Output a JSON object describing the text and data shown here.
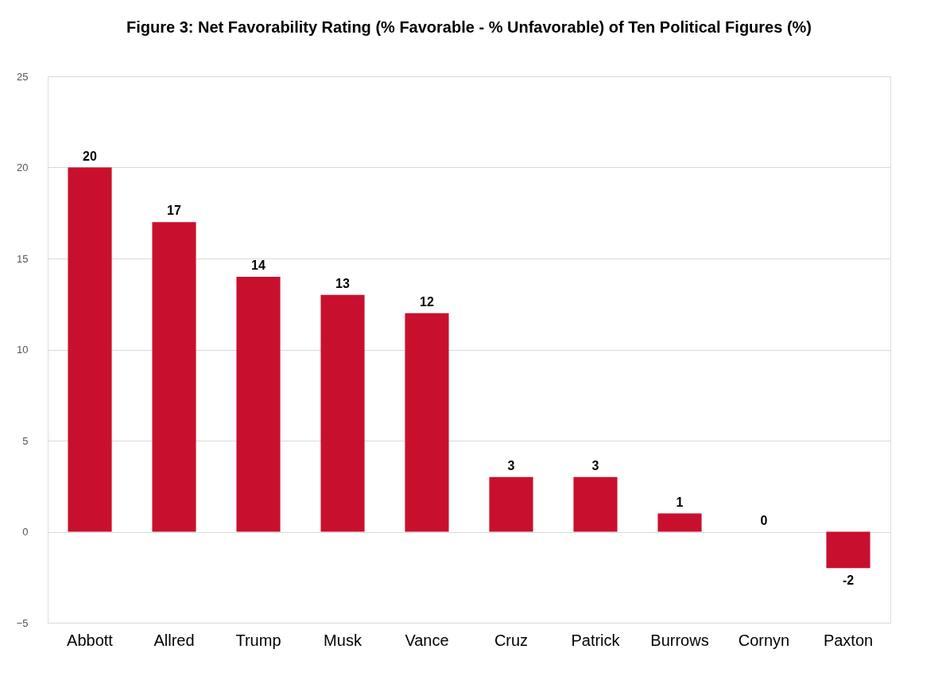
{
  "chart_data": {
    "type": "bar",
    "title": "Figure 3: Net Favorability Rating (% Favorable - % Unfavorable) of Ten Political Figures (%)",
    "categories": [
      "Abbott",
      "Allred",
      "Trump",
      "Musk",
      "Vance",
      "Cruz",
      "Patrick",
      "Burrows",
      "Cornyn",
      "Paxton"
    ],
    "values": [
      20,
      17,
      14,
      13,
      12,
      3,
      3,
      1,
      0,
      -2
    ],
    "color": "#c8102e",
    "ylim": [
      -5,
      25
    ],
    "yticks": [
      -5,
      0,
      5,
      10,
      15,
      20,
      25
    ],
    "grid": "y",
    "data_labels": true
  }
}
